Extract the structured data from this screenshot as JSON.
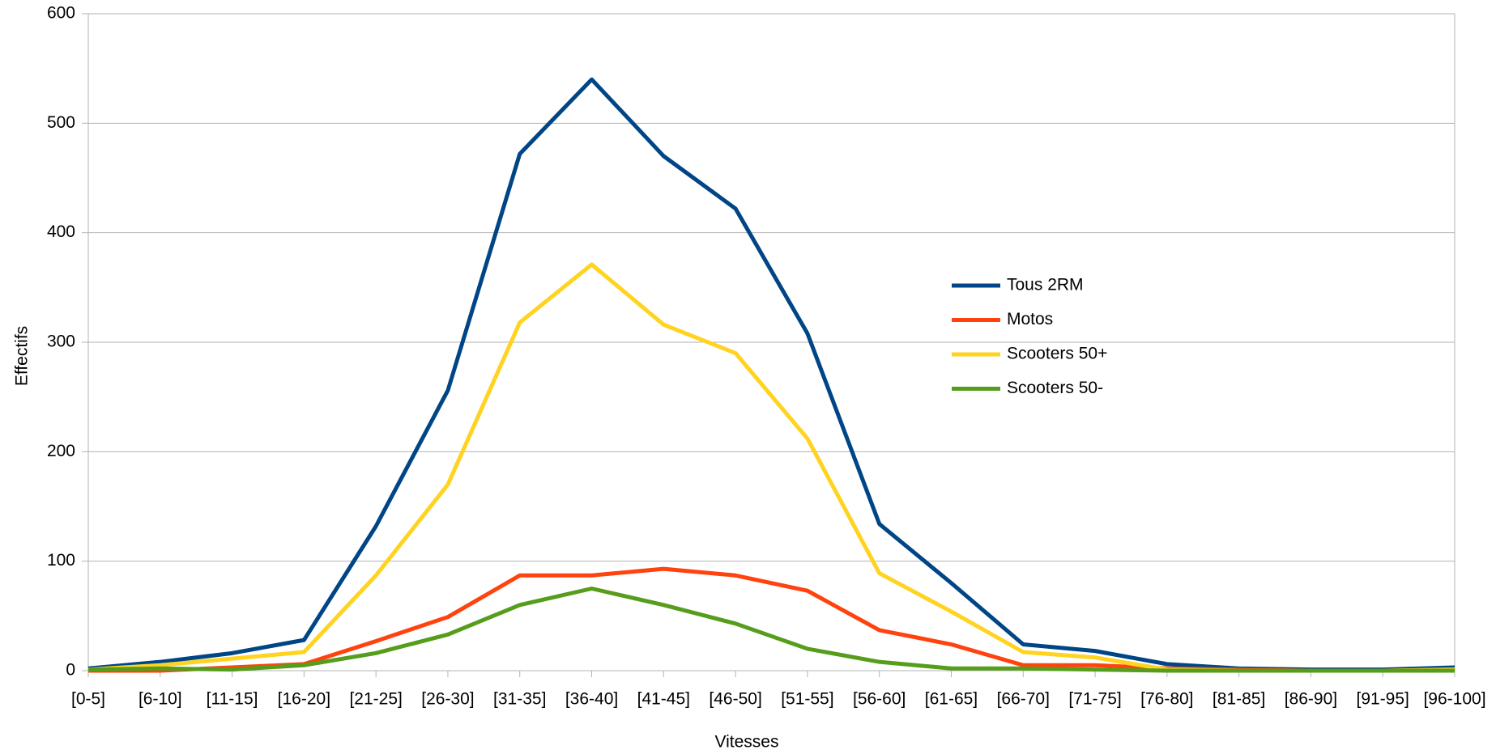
{
  "chart_data": {
    "type": "line",
    "x_label": "Vitesses",
    "y_label": "Effectifs",
    "categories": [
      "[0-5]",
      "[6-10]",
      "[11-15]",
      "[16-20]",
      "[21-25]",
      "[26-30]",
      "[31-35]",
      "[36-40]",
      "[41-45]",
      "[46-50]",
      "[51-55]",
      "[56-60]",
      "[61-65]",
      "[66-70]",
      "[71-75]",
      "[76-80]",
      "[81-85]",
      "[86-90]",
      "[91-95]",
      "[96-100]"
    ],
    "series": [
      {
        "name": "Tous 2RM",
        "color": "#004586",
        "values": [
          2,
          8,
          16,
          28,
          132,
          256,
          472,
          540,
          470,
          422,
          308,
          134,
          80,
          24,
          18,
          6,
          2,
          1,
          1,
          3
        ]
      },
      {
        "name": "Motos",
        "color": "#ff420e",
        "values": [
          0,
          0,
          3,
          6,
          27,
          49,
          87,
          87,
          93,
          87,
          73,
          37,
          24,
          5,
          5,
          2,
          1,
          0,
          0,
          1
        ]
      },
      {
        "name": "Scooters 50+",
        "color": "#ffd320",
        "values": [
          1,
          5,
          11,
          17,
          87,
          170,
          318,
          371,
          316,
          290,
          212,
          89,
          54,
          17,
          12,
          1,
          0,
          0,
          0,
          1
        ]
      },
      {
        "name": "Scooters 50-",
        "color": "#579d1c",
        "values": [
          1,
          2,
          1,
          5,
          16,
          33,
          60,
          75,
          60,
          43,
          20,
          8,
          2,
          2,
          1,
          0,
          0,
          0,
          0,
          0
        ]
      }
    ],
    "ylim": [
      0,
      600
    ],
    "yticks": [
      0,
      100,
      200,
      300,
      400,
      500,
      600
    ],
    "grid": true,
    "legend": "right"
  }
}
